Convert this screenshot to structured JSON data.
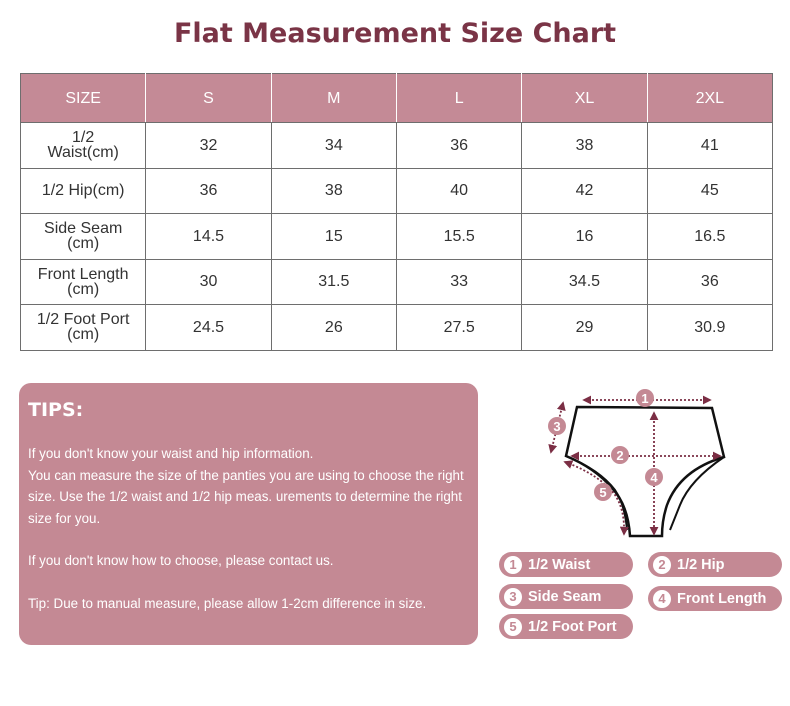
{
  "title": "Flat Measurement Size Chart",
  "table": {
    "headers": [
      "SIZE",
      "S",
      "M",
      "L",
      "XL",
      "2XL"
    ],
    "rows": [
      [
        "1/2\nWaist(cm)",
        "32",
        "34",
        "36",
        "38",
        "41"
      ],
      [
        "1/2 Hip(cm)",
        "36",
        "38",
        "40",
        "42",
        "45"
      ],
      [
        "Side Seam\n(cm)",
        "14.5",
        "15",
        "15.5",
        "16",
        "16.5"
      ],
      [
        "Front Length\n(cm)",
        "30",
        "31.5",
        "33",
        "34.5",
        "36"
      ],
      [
        "1/2 Foot Port\n(cm)",
        "24.5",
        "26",
        "27.5",
        "29",
        "30.9"
      ]
    ]
  },
  "tips": {
    "heading": "TIPS:",
    "p1": "If you don't know your waist and hip information.",
    "p2": "You can measure the size of the panties you are using to choose the right size. Use the 1/2 waist and 1/2 hip meas. urements to determine the right size for you.",
    "p3": "If you don't know how to choose, please contact us.",
    "p4": "Tip: Due to manual measure, please allow 1-2cm difference in size."
  },
  "legend": [
    {
      "n": "1",
      "label": "1/2 Waist"
    },
    {
      "n": "2",
      "label": "1/2 Hip"
    },
    {
      "n": "3",
      "label": "Side Seam"
    },
    {
      "n": "4",
      "label": "Front Length"
    },
    {
      "n": "5",
      "label": "1/2 Foot Port"
    }
  ],
  "colors": {
    "accent": "#c48a96",
    "title": "#7a3446",
    "measure": "#7b2e44"
  }
}
